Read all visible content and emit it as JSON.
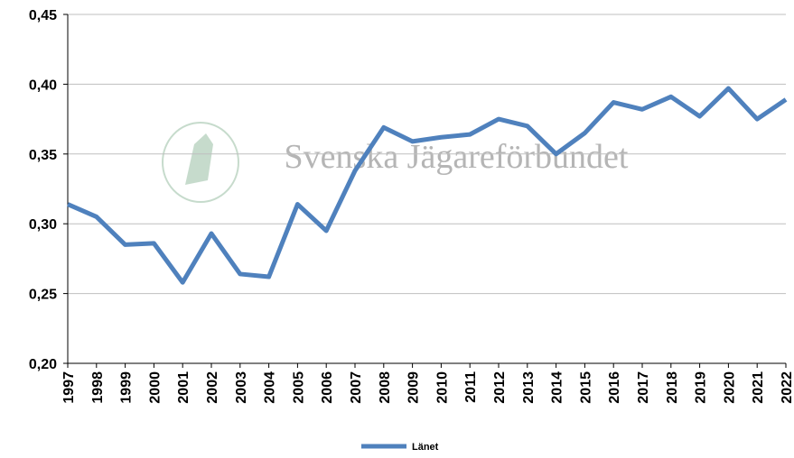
{
  "chart_data": {
    "type": "line",
    "watermark": "Svenska Jägareförbundet",
    "categories": [
      "1997",
      "1998",
      "1999",
      "2000",
      "2001",
      "2002",
      "2003",
      "2004",
      "2005",
      "2006",
      "2007",
      "2008",
      "2009",
      "2010",
      "2011",
      "2012",
      "2013",
      "2014",
      "2015",
      "2016",
      "2017",
      "2018",
      "2019",
      "2020",
      "2021",
      "2022"
    ],
    "series": [
      {
        "name": "Länet",
        "color": "#4f81bd",
        "values": [
          0.314,
          0.305,
          0.285,
          0.286,
          0.258,
          0.293,
          0.264,
          0.262,
          0.314,
          0.295,
          0.338,
          0.369,
          0.359,
          0.362,
          0.364,
          0.375,
          0.37,
          0.35,
          0.365,
          0.387,
          0.382,
          0.391,
          0.377,
          0.397,
          0.375,
          0.389
        ]
      }
    ],
    "ylim": [
      0.2,
      0.45
    ],
    "yticks": [
      {
        "value": 0.2,
        "label": "0,20"
      },
      {
        "value": 0.25,
        "label": "0,25"
      },
      {
        "value": 0.3,
        "label": "0,30"
      },
      {
        "value": 0.35,
        "label": "0,35"
      },
      {
        "value": 0.4,
        "label": "0,40"
      },
      {
        "value": 0.45,
        "label": "0,45"
      }
    ],
    "grid": true,
    "legend": "bottom"
  }
}
